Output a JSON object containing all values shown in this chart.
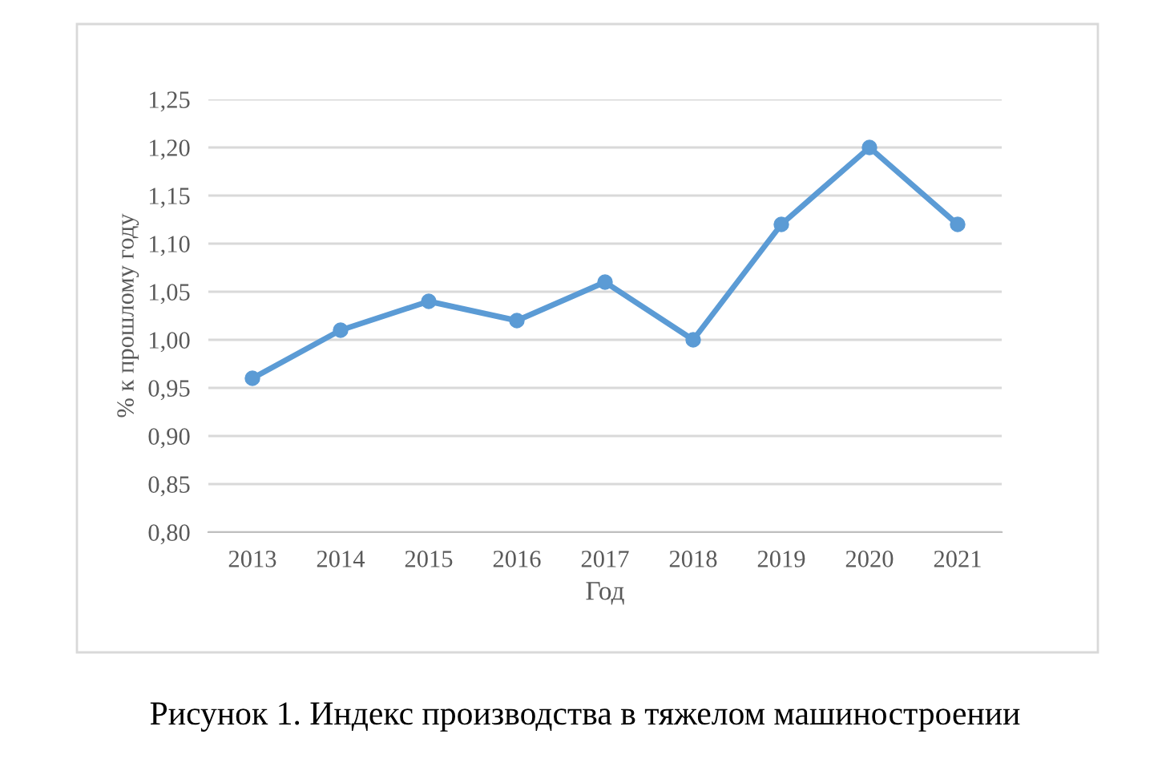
{
  "chart_data": {
    "type": "line",
    "xlabel": "Год",
    "ylabel": "% к прошлому году",
    "categories": [
      "2013",
      "2014",
      "2015",
      "2016",
      "2017",
      "2018",
      "2019",
      "2020",
      "2021"
    ],
    "series": [
      {
        "color": "#5b9bd5",
        "values": [
          0.96,
          1.01,
          1.04,
          1.02,
          1.06,
          1.0,
          1.12,
          1.2,
          1.12
        ]
      }
    ],
    "ylim": [
      0.8,
      1.25
    ],
    "yticks": [
      {
        "value": 0.8,
        "label": "0,80"
      },
      {
        "value": 0.85,
        "label": "0,85"
      },
      {
        "value": 0.9,
        "label": "0,90"
      },
      {
        "value": 0.95,
        "label": "0,95"
      },
      {
        "value": 1.0,
        "label": "1,00"
      },
      {
        "value": 1.05,
        "label": "1,05"
      },
      {
        "value": 1.1,
        "label": "1,10"
      },
      {
        "value": 1.15,
        "label": "1,15"
      },
      {
        "value": 1.2,
        "label": "1,20"
      },
      {
        "value": 1.25,
        "label": "1,25"
      }
    ],
    "grid": "y",
    "marker": "circle",
    "line_style": "solid",
    "annotations": [
      "Рисунок 1. Индекс производства в тяжелом машиностроении"
    ]
  }
}
